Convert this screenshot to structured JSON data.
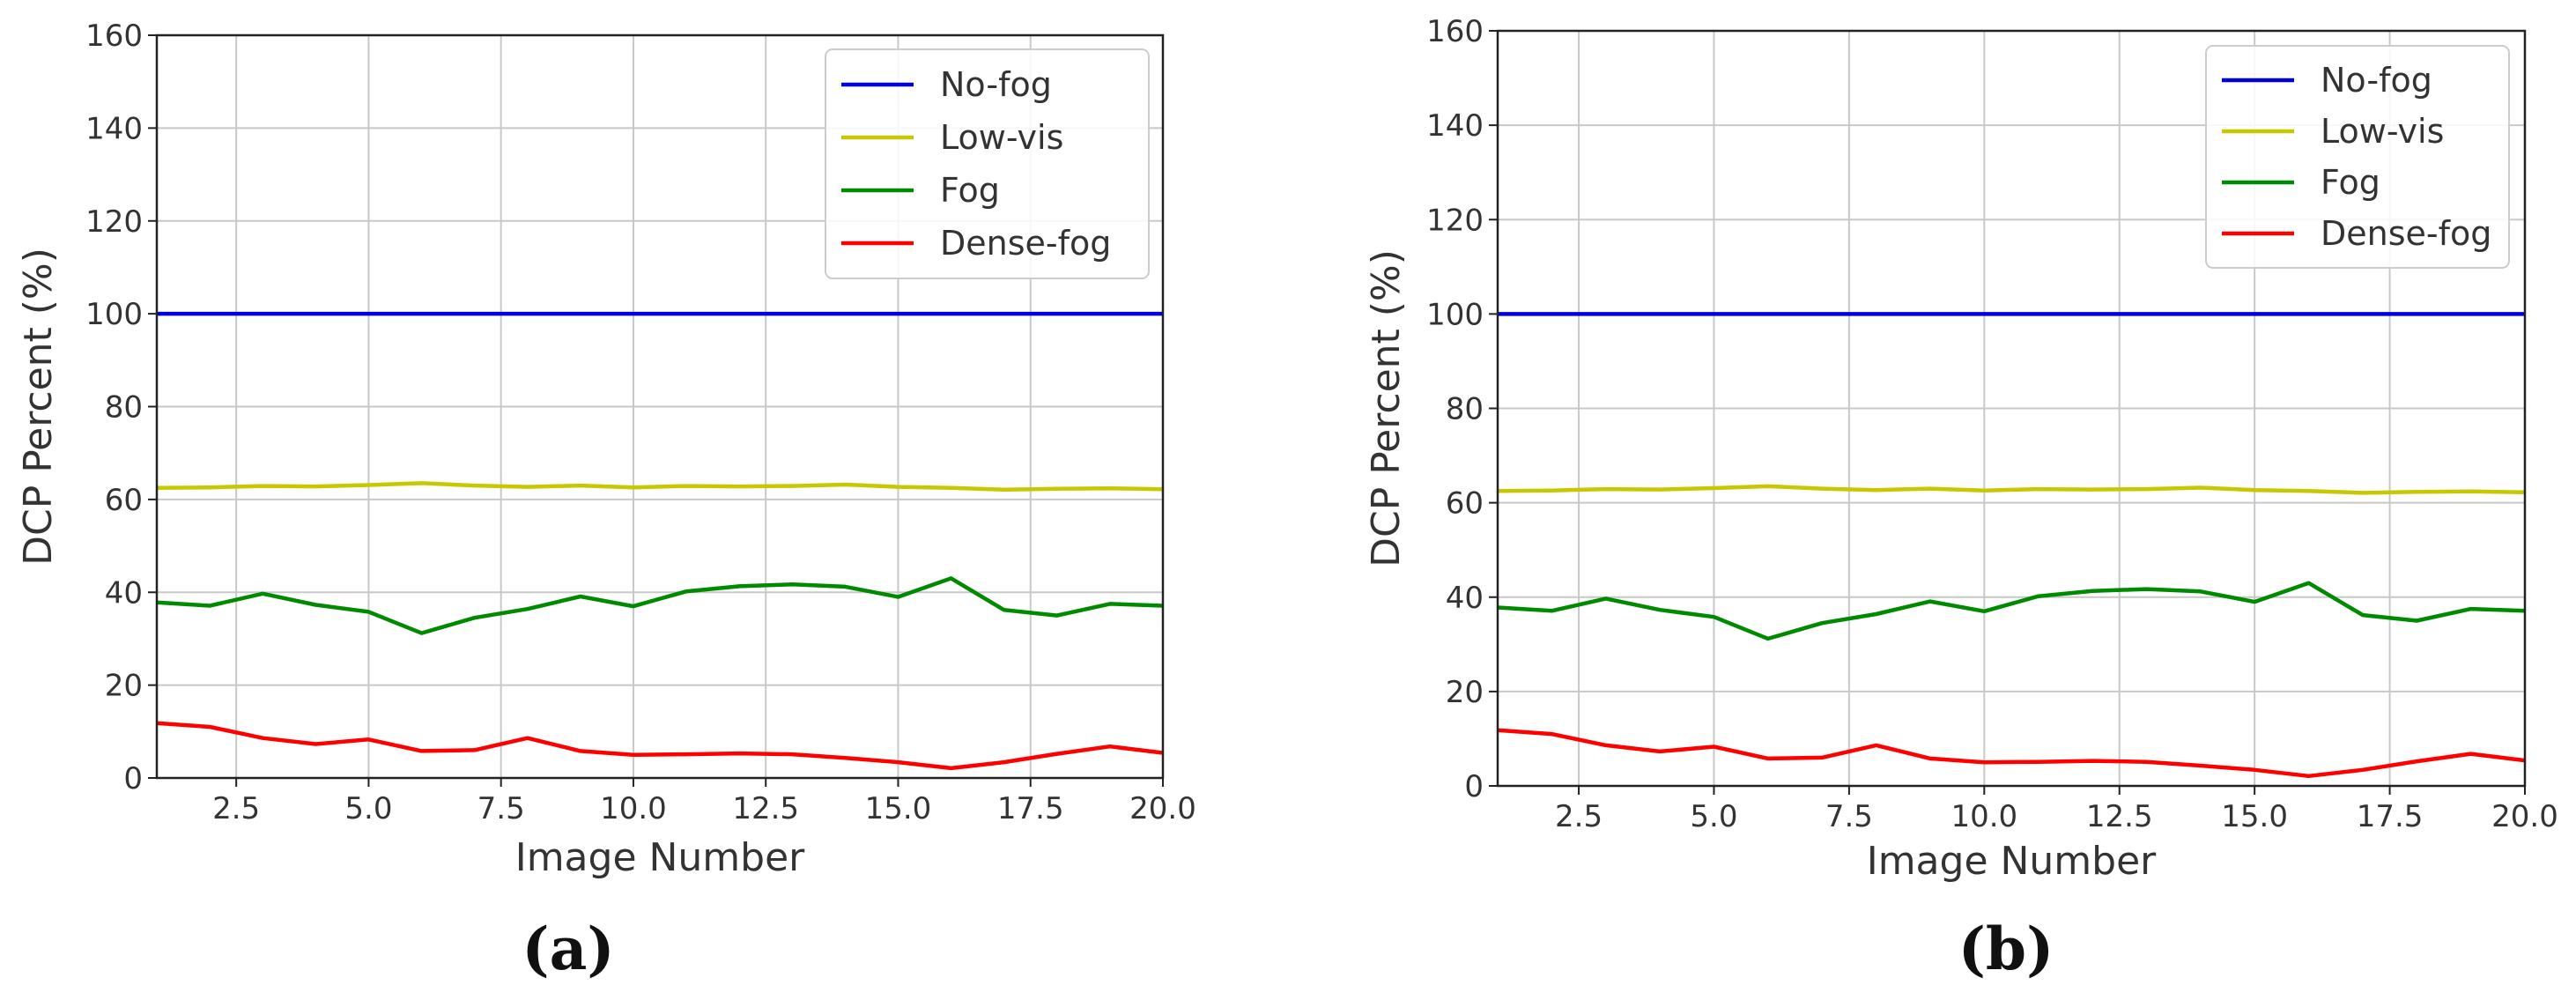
{
  "chart_data": [
    {
      "type": "line",
      "panel": "(a)",
      "xlabel": "Image Number",
      "ylabel": "DCP Percent (%)",
      "xlim": [
        1,
        20
      ],
      "ylim": [
        0,
        160
      ],
      "xticks": [
        "2.5",
        "5.0",
        "7.5",
        "10.0",
        "12.5",
        "15.0",
        "17.5",
        "20.0"
      ],
      "yticks": [
        "0",
        "20",
        "40",
        "60",
        "80",
        "100",
        "120",
        "140",
        "160"
      ],
      "grid": true,
      "legend_position": "top-right",
      "x": [
        1,
        2,
        3,
        4,
        5,
        6,
        7,
        8,
        9,
        10,
        11,
        12,
        13,
        14,
        15,
        16,
        17,
        18,
        19,
        20
      ],
      "series": [
        {
          "name": "No-fog",
          "color": "#0000dd",
          "values": [
            100,
            100,
            100,
            100,
            100,
            100,
            100,
            100,
            100,
            100,
            100,
            100,
            100,
            100,
            100,
            100,
            100,
            100,
            100,
            100
          ]
        },
        {
          "name": "Low-vis",
          "color": "#c8c800",
          "values": [
            62.5,
            62.6,
            62.9,
            62.8,
            63.1,
            63.5,
            63.0,
            62.7,
            63.0,
            62.6,
            62.9,
            62.8,
            62.9,
            63.2,
            62.7,
            62.5,
            62.1,
            62.3,
            62.4,
            62.2
          ]
        },
        {
          "name": "Fog",
          "color": "#008a00",
          "values": [
            37.8,
            37.1,
            39.7,
            37.3,
            35.8,
            31.2,
            34.5,
            36.4,
            39.1,
            37.0,
            40.2,
            41.3,
            41.7,
            41.2,
            39.0,
            43.0,
            36.2,
            35.0,
            37.5,
            37.1
          ]
        },
        {
          "name": "Dense-fog",
          "color": "#ff0000",
          "values": [
            11.8,
            11.0,
            8.6,
            7.3,
            8.3,
            5.8,
            6.0,
            8.6,
            5.8,
            5.0,
            5.1,
            5.3,
            5.1,
            4.3,
            3.4,
            2.1,
            3.4,
            5.2,
            6.8,
            5.4
          ]
        }
      ]
    },
    {
      "type": "line",
      "panel": "(b)",
      "xlabel": "Image Number",
      "ylabel": "DCP Percent (%)",
      "xlim": [
        1,
        20
      ],
      "ylim": [
        0,
        160
      ],
      "xticks": [
        "2.5",
        "5.0",
        "7.5",
        "10.0",
        "12.5",
        "15.0",
        "17.5",
        "20.0"
      ],
      "yticks": [
        "0",
        "20",
        "40",
        "60",
        "80",
        "100",
        "120",
        "140",
        "160"
      ],
      "grid": true,
      "legend_position": "top-right",
      "x": [
        1,
        2,
        3,
        4,
        5,
        6,
        7,
        8,
        9,
        10,
        11,
        12,
        13,
        14,
        15,
        16,
        17,
        18,
        19,
        20
      ],
      "series": [
        {
          "name": "No-fog",
          "color": "#0000dd",
          "values": [
            100,
            100,
            100,
            100,
            100,
            100,
            100,
            100,
            100,
            100,
            100,
            100,
            100,
            100,
            100,
            100,
            100,
            100,
            100,
            100
          ]
        },
        {
          "name": "Low-vis",
          "color": "#c8c800",
          "values": [
            62.5,
            62.6,
            62.9,
            62.8,
            63.1,
            63.5,
            63.0,
            62.7,
            63.0,
            62.6,
            62.9,
            62.8,
            62.9,
            63.2,
            62.7,
            62.5,
            62.1,
            62.3,
            62.4,
            62.2
          ]
        },
        {
          "name": "Fog",
          "color": "#008a00",
          "values": [
            37.8,
            37.1,
            39.7,
            37.3,
            35.8,
            31.2,
            34.5,
            36.4,
            39.1,
            37.0,
            40.2,
            41.3,
            41.7,
            41.2,
            39.0,
            43.0,
            36.2,
            35.0,
            37.5,
            37.1
          ]
        },
        {
          "name": "Dense-fog",
          "color": "#ff0000",
          "values": [
            11.8,
            11.0,
            8.6,
            7.3,
            8.3,
            5.8,
            6.0,
            8.6,
            5.8,
            5.0,
            5.1,
            5.3,
            5.1,
            4.3,
            3.4,
            2.1,
            3.4,
            5.2,
            6.8,
            5.4
          ]
        }
      ]
    }
  ]
}
